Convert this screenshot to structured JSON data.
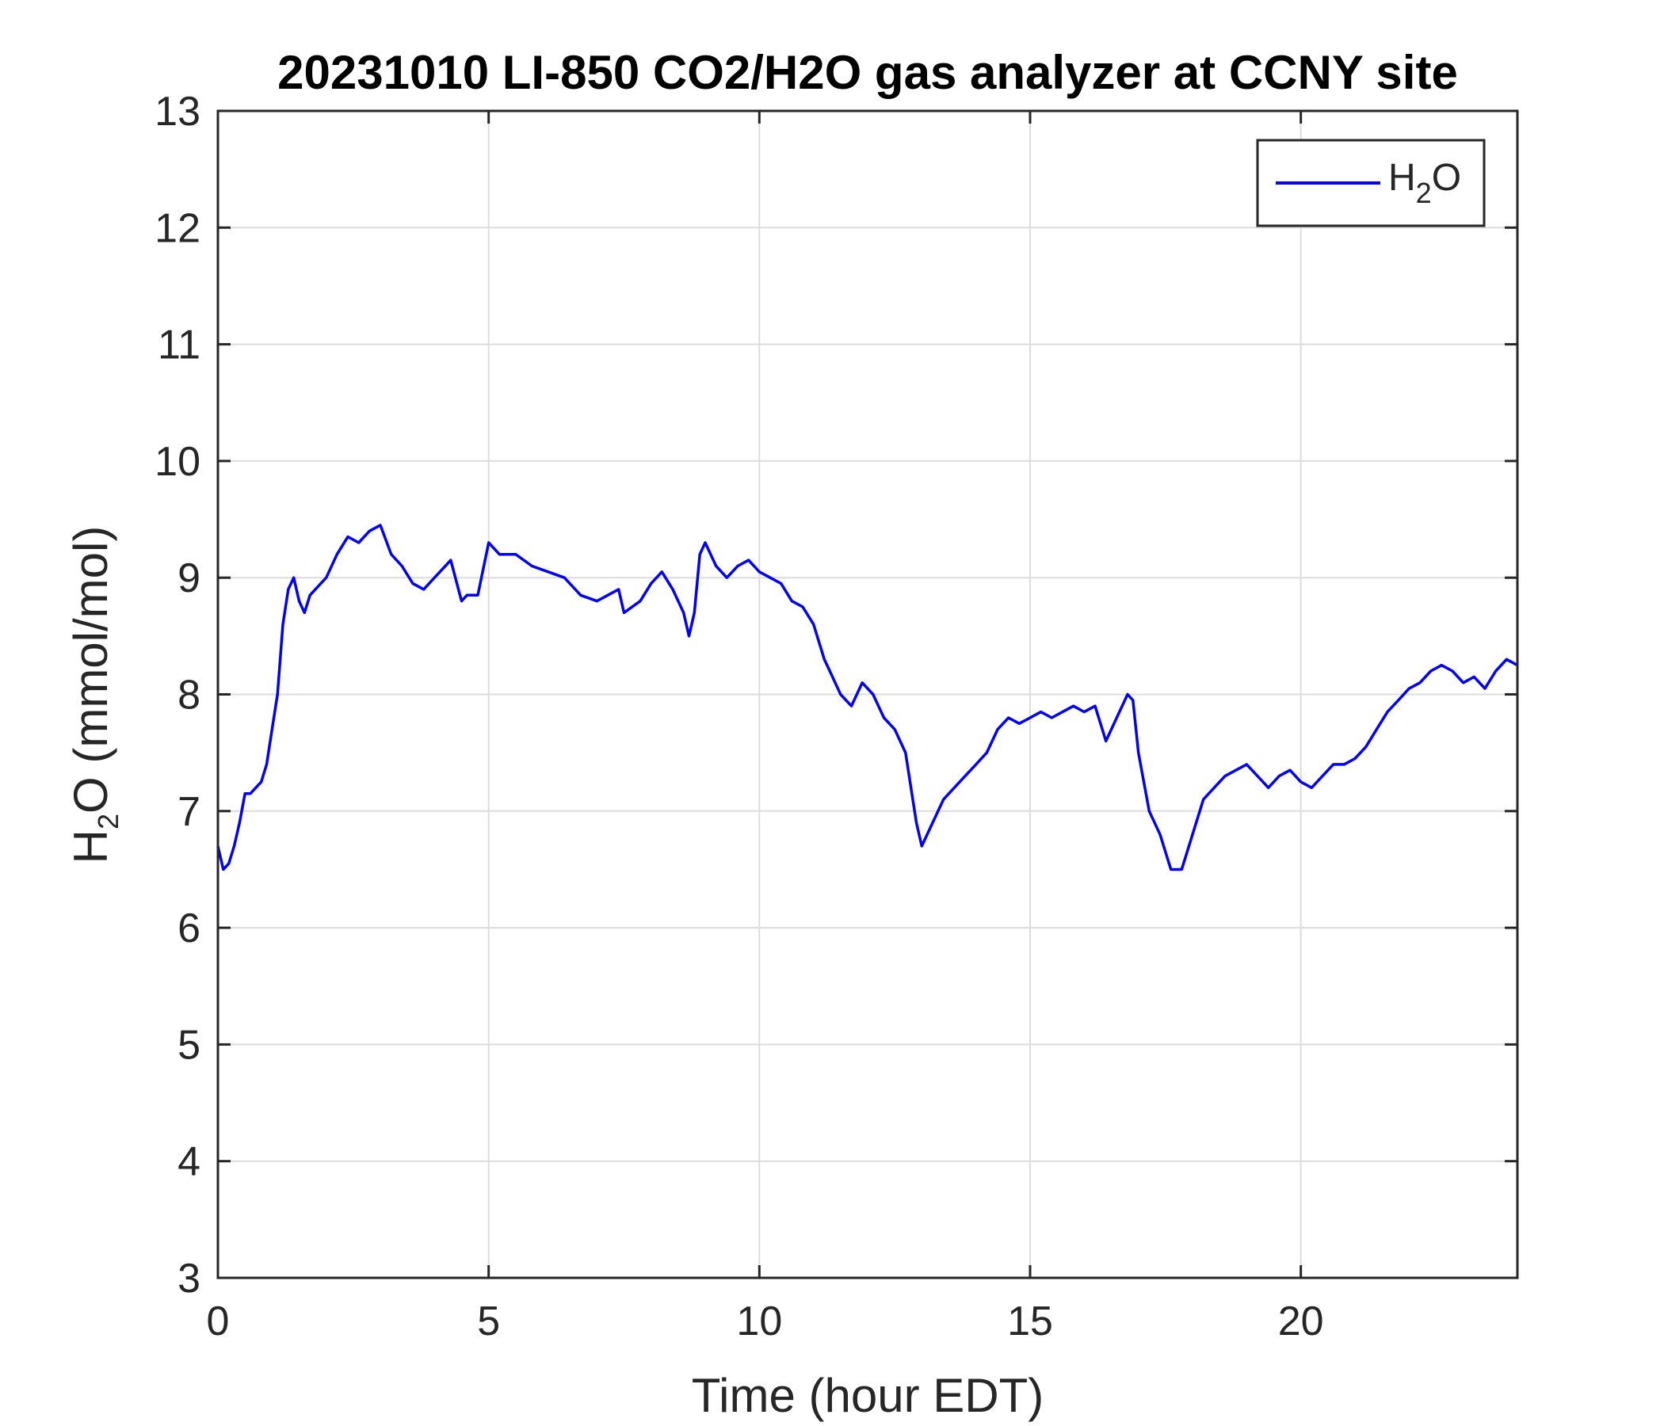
{
  "chart_data": {
    "type": "line",
    "title": "20231010 LI-850 CO2/H2O gas analyzer at CCNY site",
    "xlabel": "Time (hour EDT)",
    "ylabel": {
      "prefix": "H",
      "sub": "2",
      "suffix": "O (mmol/mol)"
    },
    "xlim": [
      0,
      24
    ],
    "ylim": [
      3,
      13
    ],
    "xticks": [
      0,
      5,
      10,
      15,
      20
    ],
    "yticks": [
      3,
      4,
      5,
      6,
      7,
      8,
      9,
      10,
      11,
      12,
      13
    ],
    "grid": true,
    "legend_position": "top-right",
    "series": [
      {
        "name": {
          "prefix": "H",
          "sub": "2",
          "suffix": "O"
        },
        "color": "#0000ff",
        "x": [
          0,
          0.1,
          0.2,
          0.3,
          0.4,
          0.5,
          0.6,
          0.7,
          0.8,
          0.9,
          1.0,
          1.1,
          1.2,
          1.3,
          1.4,
          1.5,
          1.6,
          1.7,
          1.8,
          1.9,
          2.0,
          2.2,
          2.4,
          2.6,
          2.8,
          3.0,
          3.2,
          3.4,
          3.6,
          3.8,
          4.0,
          4.2,
          4.3,
          4.5,
          4.6,
          4.8,
          5.0,
          5.2,
          5.5,
          5.8,
          6.1,
          6.4,
          6.7,
          7.0,
          7.2,
          7.4,
          7.5,
          7.8,
          8.0,
          8.2,
          8.4,
          8.6,
          8.7,
          8.8,
          8.9,
          9.0,
          9.2,
          9.4,
          9.6,
          9.8,
          10.0,
          10.2,
          10.4,
          10.6,
          10.8,
          11.0,
          11.2,
          11.3,
          11.5,
          11.7,
          11.9,
          12.1,
          12.3,
          12.5,
          12.7,
          12.9,
          13.0,
          13.2,
          13.4,
          13.6,
          13.8,
          14.0,
          14.2,
          14.4,
          14.6,
          14.8,
          15.0,
          15.2,
          15.4,
          15.6,
          15.8,
          16.0,
          16.2,
          16.4,
          16.6,
          16.8,
          16.9,
          17.0,
          17.2,
          17.4,
          17.6,
          17.8,
          18.0,
          18.2,
          18.4,
          18.6,
          18.8,
          19.0,
          19.2,
          19.4,
          19.6,
          19.8,
          20.0,
          20.2,
          20.4,
          20.6,
          20.8,
          21.0,
          21.2,
          21.4,
          21.6,
          21.8,
          22.0,
          22.2,
          22.4,
          22.6,
          22.8,
          23.0,
          23.2,
          23.4,
          23.6,
          23.8,
          24.0
        ],
        "y": [
          6.7,
          6.5,
          6.55,
          6.7,
          6.9,
          7.15,
          7.15,
          7.2,
          7.25,
          7.4,
          7.7,
          8.0,
          8.6,
          8.9,
          9.0,
          8.8,
          8.7,
          8.85,
          8.9,
          8.95,
          9.0,
          9.2,
          9.35,
          9.3,
          9.4,
          9.45,
          9.2,
          9.1,
          8.95,
          8.9,
          9.0,
          9.1,
          9.15,
          8.8,
          8.85,
          8.85,
          9.3,
          9.2,
          9.2,
          9.1,
          9.05,
          9.0,
          8.85,
          8.8,
          8.85,
          8.9,
          8.7,
          8.8,
          8.95,
          9.05,
          8.9,
          8.7,
          8.5,
          8.7,
          9.2,
          9.3,
          9.1,
          9.0,
          9.1,
          9.15,
          9.05,
          9.0,
          8.95,
          8.8,
          8.75,
          8.6,
          8.3,
          8.2,
          8.0,
          7.9,
          8.1,
          8.0,
          7.8,
          7.7,
          7.5,
          6.9,
          6.7,
          6.9,
          7.1,
          7.2,
          7.3,
          7.4,
          7.5,
          7.7,
          7.8,
          7.75,
          7.8,
          7.85,
          7.8,
          7.85,
          7.9,
          7.85,
          7.9,
          7.6,
          7.8,
          8.0,
          7.95,
          7.5,
          7.0,
          6.8,
          6.5,
          6.5,
          6.8,
          7.1,
          7.2,
          7.3,
          7.35,
          7.4,
          7.3,
          7.2,
          7.3,
          7.35,
          7.25,
          7.2,
          7.3,
          7.4,
          7.4,
          7.45,
          7.55,
          7.7,
          7.85,
          7.95,
          8.05,
          8.1,
          8.2,
          8.25,
          8.2,
          8.1,
          8.15,
          8.05,
          8.2,
          8.3,
          8.25
        ]
      }
    ]
  }
}
